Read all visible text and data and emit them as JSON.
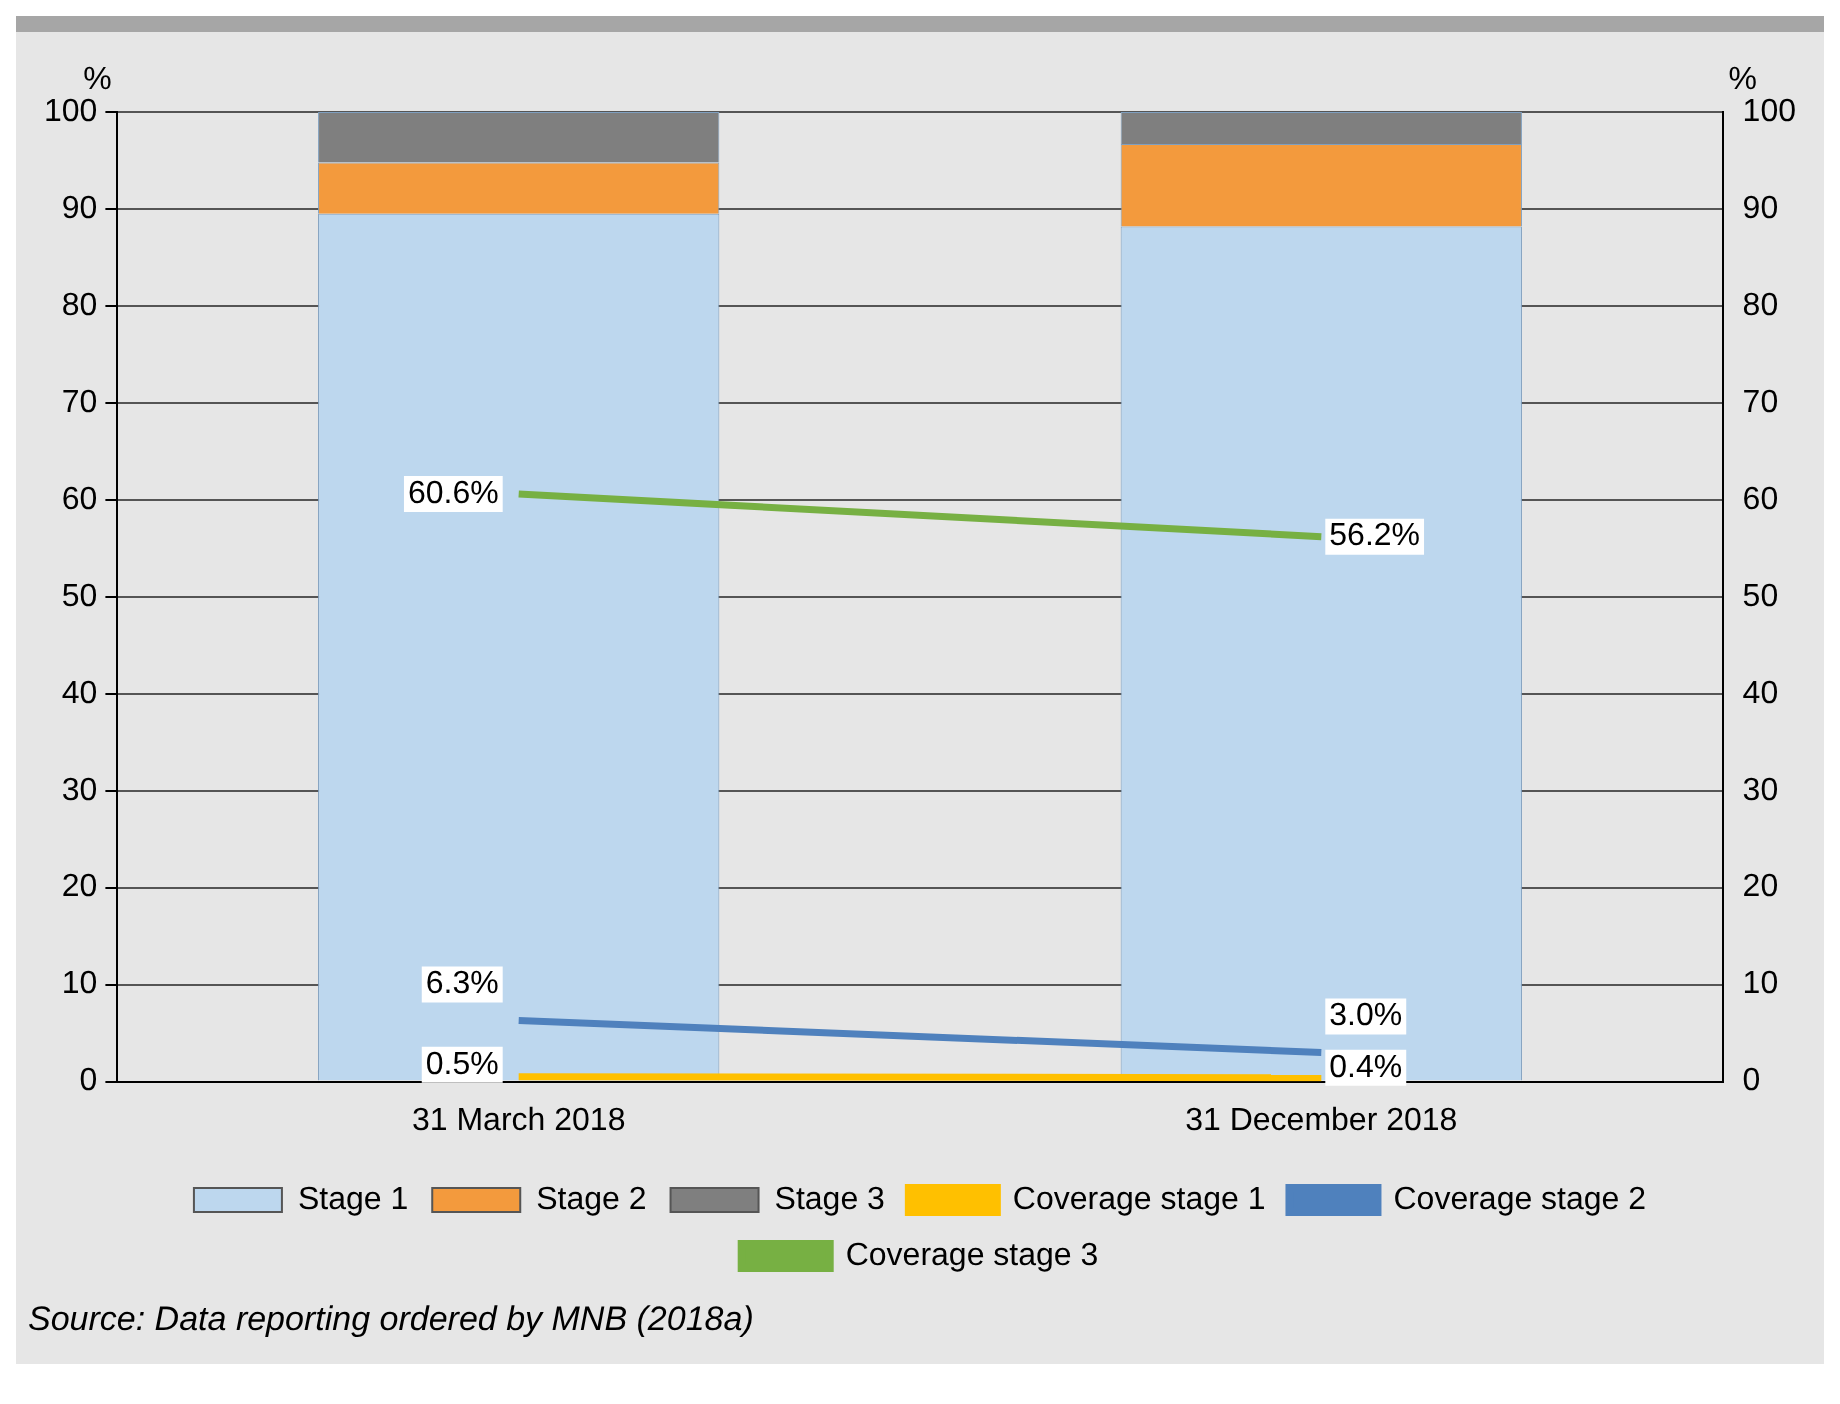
{
  "chart_data": {
    "type": "bar",
    "stacked": true,
    "categories": [
      "31 March 2018",
      "31 December 2018"
    ],
    "series": [
      {
        "name": "Stage 1",
        "color": "#bdd7ee",
        "values": [
          89.5,
          88.2
        ]
      },
      {
        "name": "Stage 2",
        "color": "#f39a3d",
        "values": [
          5.3,
          8.5
        ]
      },
      {
        "name": "Stage 3",
        "color": "#7f7f7f",
        "values": [
          5.2,
          3.3
        ]
      },
      {
        "name": "Coverage stage 1",
        "type": "line",
        "color": "#ffc000",
        "values": [
          0.5,
          0.4
        ],
        "value_labels": [
          "0.5%",
          "0.4%"
        ]
      },
      {
        "name": "Coverage stage 2",
        "type": "line",
        "color": "#4f81bd",
        "values": [
          6.3,
          3.0
        ],
        "value_labels": [
          "6.3%",
          "3.0%"
        ]
      },
      {
        "name": "Coverage stage 3",
        "type": "line",
        "color": "#77b043",
        "values": [
          60.6,
          56.2
        ],
        "value_labels": [
          "60.6%",
          "56.2%"
        ]
      }
    ],
    "ylabel": "%",
    "y2label": "%",
    "ylim": [
      0,
      100
    ],
    "yticks": [
      0,
      10,
      20,
      30,
      40,
      50,
      60,
      70,
      80,
      90,
      100
    ],
    "y2lim": [
      0,
      100
    ],
    "y2ticks": [
      0,
      10,
      20,
      30,
      40,
      50,
      60,
      70,
      80,
      90,
      100
    ],
    "grid": "y",
    "legend": "bottom",
    "marker": "none",
    "line_style": "solid",
    "annotations": [
      "Source: Data reporting ordered by MNB (2018a)"
    ]
  }
}
